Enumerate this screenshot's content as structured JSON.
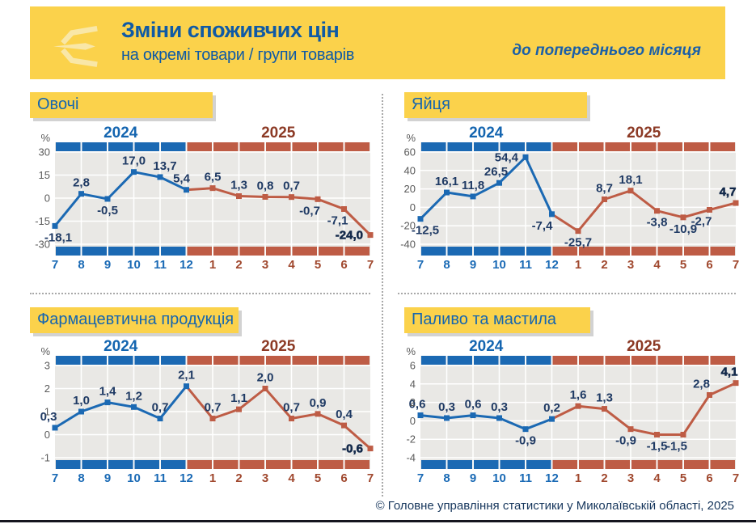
{
  "header": {
    "title": "Зміни споживчих цін",
    "subtitle": "на окремі товари / групи товарів",
    "note": "до попереднього місяця"
  },
  "footer": {
    "copyright": "© Головне управління статистики у Миколаївській області, 2025"
  },
  "years": {
    "first": "2024",
    "second": "2025"
  },
  "months": [
    "7",
    "8",
    "9",
    "10",
    "11",
    "12",
    "1",
    "2",
    "3",
    "4",
    "5",
    "6",
    "7"
  ],
  "months_2024_count": 6,
  "colors": {
    "blue": "#1B69B3",
    "brown": "#BE5C45",
    "year_blue": "#1465B0",
    "year_brown": "#8C3A25",
    "month_blue": "#1A6AB5",
    "month_brown": "#A0482E",
    "label_navy": "#1F3A64",
    "label_bold": "#13294A",
    "tick_gray": "#5A5A5A",
    "plot_bg": "#E9E8E5",
    "grid_white": "#FFFFFF",
    "accent_yellow": "#FBD24B"
  },
  "chart_data": [
    {
      "type": "line",
      "title": "Овочі",
      "ylabel": "%",
      "xlabel": "",
      "categories": [
        "7",
        "8",
        "9",
        "10",
        "11",
        "12",
        "1",
        "2",
        "3",
        "4",
        "5",
        "6",
        "7"
      ],
      "ylim": [
        -30,
        30
      ],
      "ticks": [
        "30",
        "15",
        "0",
        "-15",
        "-30"
      ],
      "values": [
        -18.1,
        2.8,
        -0.5,
        17.0,
        13.7,
        5.4,
        6.5,
        1.3,
        0.8,
        0.7,
        -0.7,
        -7.1,
        -24.0
      ],
      "labels": [
        "-18,1",
        "2,8",
        "-0,5",
        "17,0",
        "13,7",
        "5,4",
        "6,5",
        "1,3",
        "0,8",
        "0,7",
        "-0,7",
        "-7,1",
        "-24,0"
      ],
      "label_pos": [
        "b4",
        "a",
        "b",
        "a",
        "a6",
        "a-6",
        "a",
        "a",
        "a",
        "a",
        "b-10",
        "b-8",
        "l"
      ],
      "bold_last": true
    },
    {
      "type": "line",
      "title": "Яйця",
      "ylabel": "%",
      "xlabel": "",
      "categories": [
        "7",
        "8",
        "9",
        "10",
        "11",
        "12",
        "1",
        "2",
        "3",
        "4",
        "5",
        "6",
        "7"
      ],
      "ylim": [
        -40,
        60
      ],
      "ticks": [
        "60",
        "40",
        "20",
        "0",
        "-20",
        "-40"
      ],
      "values": [
        -12.5,
        16.1,
        11.8,
        26.5,
        54.4,
        -7.4,
        -25.7,
        8.7,
        18.1,
        -3.8,
        -10.9,
        -2.7,
        4.7
      ],
      "labels": [
        "-12,5",
        "16,1",
        "11,8",
        "26,5",
        "54,4",
        "-7,4",
        "-25,7",
        "8,7",
        "18,1",
        "-3,8",
        "-10,9",
        "-2,7",
        "4,7"
      ],
      "label_pos": [
        "b6",
        "a",
        "a",
        "a-4",
        "l",
        "b-12",
        "b",
        "a",
        "a",
        "b",
        "b",
        "b-10",
        "a-10"
      ],
      "bold_last": true
    },
    {
      "type": "line",
      "title": "Фармацевтична продукція",
      "ylabel": "%",
      "xlabel": "",
      "categories": [
        "7",
        "8",
        "9",
        "10",
        "11",
        "12",
        "1",
        "2",
        "3",
        "4",
        "5",
        "6",
        "7"
      ],
      "ylim": [
        -1,
        3
      ],
      "ticks": [
        "3",
        "2",
        "1",
        "0",
        "-1"
      ],
      "values": [
        0.3,
        1.0,
        1.4,
        1.2,
        0.7,
        2.1,
        0.7,
        1.1,
        2.0,
        0.7,
        0.9,
        0.4,
        -0.6
      ],
      "labels": [
        "0,3",
        "1,0",
        "1,4",
        "1,2",
        "0,7",
        "2,1",
        "0,7",
        "1,1",
        "2,0",
        "0,7",
        "0,9",
        "0,4",
        "-0,6"
      ],
      "label_pos": [
        "a-8",
        "a",
        "a",
        "a",
        "a",
        "a",
        "a",
        "a",
        "a",
        "a",
        "a",
        "a",
        "l"
      ],
      "bold_last": true
    },
    {
      "type": "line",
      "title": "Паливо та мастила",
      "ylabel": "%",
      "xlabel": "",
      "categories": [
        "7",
        "8",
        "9",
        "10",
        "11",
        "12",
        "1",
        "2",
        "3",
        "4",
        "5",
        "6",
        "7"
      ],
      "ylim": [
        -4,
        6
      ],
      "ticks": [
        "6",
        "4",
        "2",
        "0",
        "-2",
        "-4"
      ],
      "values": [
        0.6,
        0.3,
        0.6,
        0.3,
        -0.9,
        0.2,
        1.6,
        1.3,
        -0.9,
        -1.5,
        -1.5,
        2.8,
        4.1
      ],
      "labels": [
        "0,6",
        "0,3",
        "0,6",
        "0,3",
        "-0,9",
        "0,2",
        "1,6",
        "1,3",
        "-0,9",
        "-1,5",
        "-1,5",
        "2,8",
        "4,1"
      ],
      "label_pos": [
        "a-4",
        "a",
        "a",
        "a",
        "b",
        "a",
        "a",
        "a",
        "b-6",
        "b",
        "b-8",
        "a-10",
        "a-8"
      ],
      "bold_last": true
    }
  ]
}
